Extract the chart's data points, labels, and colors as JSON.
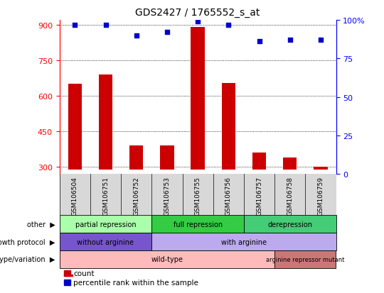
{
  "title": "GDS2427 / 1765552_s_at",
  "samples": [
    "GSM106504",
    "GSM106751",
    "GSM106752",
    "GSM106753",
    "GSM106755",
    "GSM106756",
    "GSM106757",
    "GSM106758",
    "GSM106759"
  ],
  "counts": [
    650,
    690,
    390,
    390,
    890,
    655,
    360,
    340,
    300
  ],
  "percentiles": [
    97,
    97,
    90,
    92,
    99,
    97,
    86,
    87,
    87
  ],
  "count_base": 290,
  "ylim_left": [
    270,
    920
  ],
  "ylim_right": [
    0,
    100
  ],
  "yticks_left": [
    300,
    450,
    600,
    750,
    900
  ],
  "yticks_right": [
    0,
    25,
    50,
    75,
    100
  ],
  "bar_color": "#cc0000",
  "dot_color": "#0000cc",
  "annotation_rows": [
    {
      "label": "other",
      "segments": [
        {
          "text": "partial repression",
          "start": 0,
          "end": 3,
          "color": "#aaffaa"
        },
        {
          "text": "full repression",
          "start": 3,
          "end": 6,
          "color": "#33cc44"
        },
        {
          "text": "derepression",
          "start": 6,
          "end": 9,
          "color": "#44cc77"
        }
      ]
    },
    {
      "label": "growth protocol",
      "segments": [
        {
          "text": "without arginine",
          "start": 0,
          "end": 3,
          "color": "#7755cc"
        },
        {
          "text": "with arginine",
          "start": 3,
          "end": 9,
          "color": "#bbaaee"
        }
      ]
    },
    {
      "label": "genotype/variation",
      "segments": [
        {
          "text": "wild-type",
          "start": 0,
          "end": 7,
          "color": "#ffbbbb"
        },
        {
          "text": "arginine repressor mutant",
          "start": 7,
          "end": 9,
          "color": "#cc7777"
        }
      ]
    }
  ]
}
